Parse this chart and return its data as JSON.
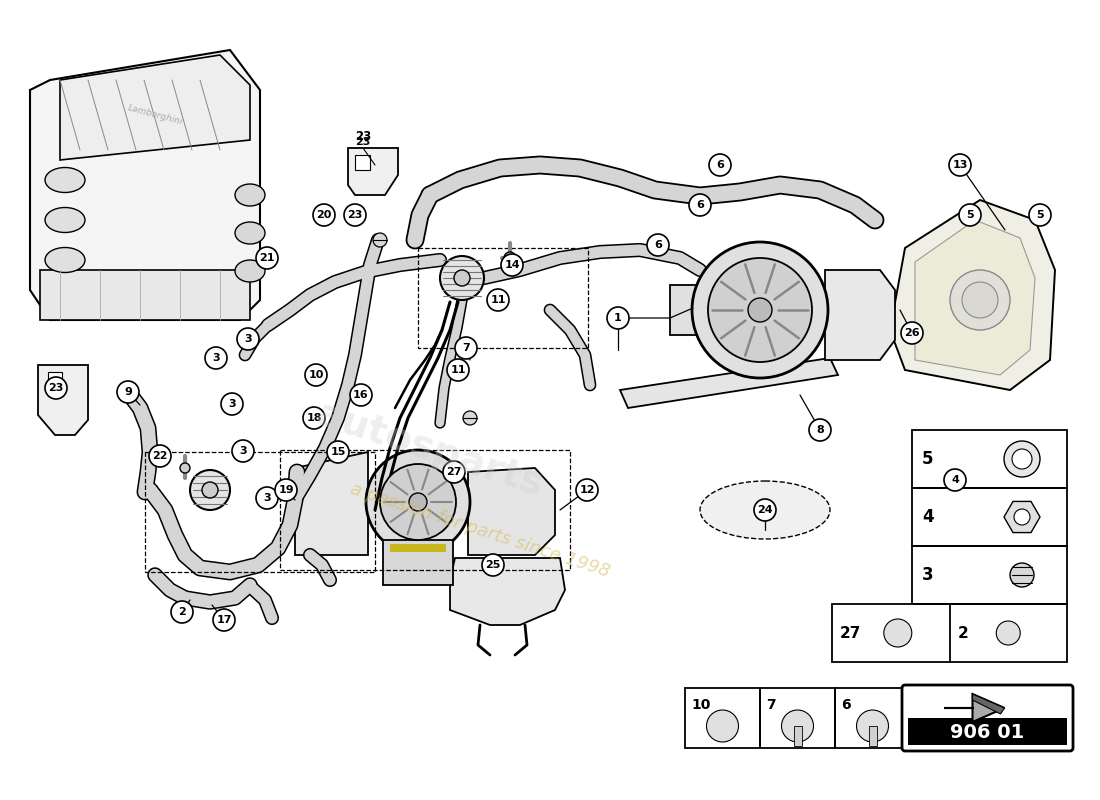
{
  "bg": "#ffffff",
  "diagram_code": "906 01",
  "wm_color1": "#d4b84a",
  "wm_color2": "#d4b84a",
  "callout_r": 11,
  "callout_fs": 8,
  "lw_hose": 7,
  "lw_thin": 1.0,
  "part_gray": "#e0e0e0",
  "part_dark": "#c0c0c0",
  "engine_stroke": "#555555",
  "callouts": [
    [
      618,
      318,
      "1"
    ],
    [
      182,
      612,
      "2"
    ],
    [
      267,
      498,
      "3"
    ],
    [
      243,
      451,
      "3"
    ],
    [
      232,
      404,
      "3"
    ],
    [
      216,
      358,
      "3"
    ],
    [
      248,
      339,
      "3"
    ],
    [
      955,
      480,
      "4"
    ],
    [
      970,
      215,
      "5"
    ],
    [
      1040,
      215,
      "5"
    ],
    [
      700,
      205,
      "6"
    ],
    [
      720,
      165,
      "6"
    ],
    [
      658,
      245,
      "6"
    ],
    [
      466,
      348,
      "7"
    ],
    [
      820,
      430,
      "8"
    ],
    [
      128,
      392,
      "9"
    ],
    [
      316,
      375,
      "10"
    ],
    [
      498,
      300,
      "11"
    ],
    [
      458,
      370,
      "11"
    ],
    [
      587,
      490,
      "12"
    ],
    [
      960,
      165,
      "13"
    ],
    [
      512,
      265,
      "14"
    ],
    [
      338,
      452,
      "15"
    ],
    [
      361,
      395,
      "16"
    ],
    [
      224,
      620,
      "17"
    ],
    [
      314,
      418,
      "18"
    ],
    [
      286,
      490,
      "19"
    ],
    [
      324,
      215,
      "20"
    ],
    [
      267,
      258,
      "21"
    ],
    [
      160,
      456,
      "22"
    ],
    [
      56,
      388,
      "23"
    ],
    [
      355,
      215,
      "23"
    ],
    [
      765,
      510,
      "24"
    ],
    [
      493,
      565,
      "25"
    ],
    [
      912,
      333,
      "26"
    ],
    [
      454,
      472,
      "27"
    ]
  ]
}
